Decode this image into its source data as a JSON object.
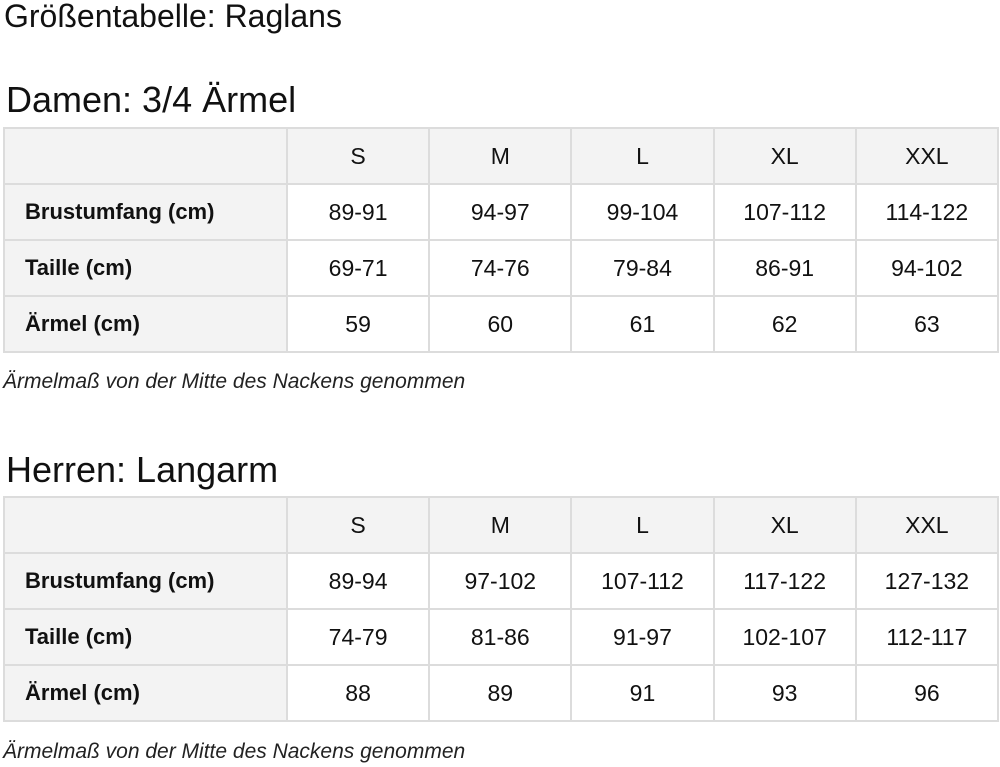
{
  "title": "Größentabelle: Raglans",
  "sections": [
    {
      "heading": "Damen: 3/4 Ärmel",
      "sizes": [
        "S",
        "M",
        "L",
        "XL",
        "XXL"
      ],
      "rows": [
        {
          "label": "Brustumfang (cm)",
          "values": [
            "89-91",
            "94-97",
            "99-104",
            "107-112",
            "114-122"
          ]
        },
        {
          "label": "Taille (cm)",
          "values": [
            "69-71",
            "74-76",
            "79-84",
            "86-91",
            "94-102"
          ]
        },
        {
          "label": "Ärmel (cm)",
          "values": [
            "59",
            "60",
            "61",
            "62",
            "63"
          ]
        }
      ],
      "note": "Ärmelmaß von der Mitte des Nackens genommen"
    },
    {
      "heading": "Herren: Langarm",
      "sizes": [
        "S",
        "M",
        "L",
        "XL",
        "XXL"
      ],
      "rows": [
        {
          "label": "Brustumfang (cm)",
          "values": [
            "89-94",
            "97-102",
            "107-112",
            "117-122",
            "127-132"
          ]
        },
        {
          "label": "Taille (cm)",
          "values": [
            "74-79",
            "81-86",
            "91-97",
            "102-107",
            "112-117"
          ]
        },
        {
          "label": "Ärmel (cm)",
          "values": [
            "88",
            "89",
            "91",
            "93",
            "96"
          ]
        }
      ],
      "note": "Ärmelmaß von der Mitte des Nackens genommen"
    }
  ]
}
